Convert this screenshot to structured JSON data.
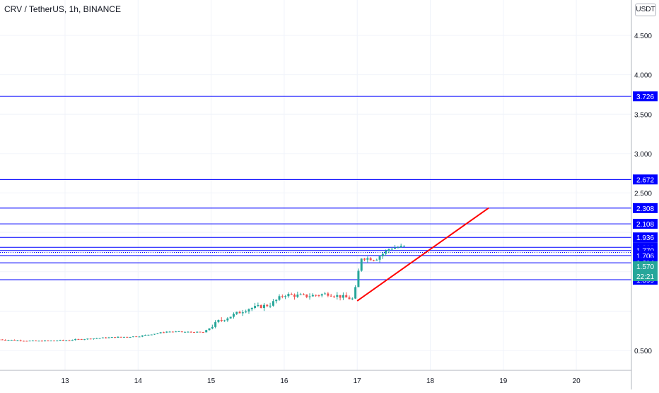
{
  "header": {
    "symbol_title": "CRV / TetherUS, 1h, BINANCE",
    "currency_button": "USDT"
  },
  "chart_data": {
    "type": "candlestick",
    "ylim": [
      0.36,
      4.92
    ],
    "y_ticks": [
      "4.500",
      "4.000",
      "3.500",
      "3.000",
      "2.500",
      "0.500"
    ],
    "x_ticks": [
      "13",
      "14",
      "15",
      "16",
      "17",
      "18",
      "19",
      "20"
    ],
    "horizontal_levels": [
      {
        "value": 3.726,
        "label": "3.726"
      },
      {
        "value": 2.672,
        "label": "2.672"
      },
      {
        "value": 2.308,
        "label": "2.308"
      },
      {
        "value": 2.108,
        "label": "2.108"
      },
      {
        "value": 1.936,
        "label": "1.936"
      },
      {
        "value": 1.81,
        "label": "1.810"
      },
      {
        "value": 1.77,
        "label": "1.770"
      },
      {
        "value": 1.706,
        "label": "1.706"
      },
      {
        "value": 1.614,
        "label": "1.614"
      },
      {
        "value": 1.399,
        "label": "1.399"
      }
    ],
    "price_line": {
      "value": 1.57,
      "label": "1.570",
      "countdown": "22:21"
    },
    "trend_line": {
      "start": {
        "x": 17.0,
        "y": 1.13
      },
      "end": {
        "x": 18.8,
        "y": 2.31
      }
    },
    "colors": {
      "up": "#26a69a",
      "down": "#ef5350",
      "level_line": "#0000ff",
      "trend_line": "#ff0000"
    },
    "close_path": [
      [
        12.1,
        0.64
      ],
      [
        12.6,
        0.62
      ],
      [
        13.0,
        0.63
      ],
      [
        13.5,
        0.66
      ],
      [
        14.0,
        0.68
      ],
      [
        14.4,
        0.74
      ],
      [
        14.9,
        0.73
      ],
      [
        15.1,
        0.87
      ],
      [
        15.5,
        1.03
      ],
      [
        15.8,
        1.08
      ],
      [
        16.0,
        1.21
      ],
      [
        16.3,
        1.19
      ],
      [
        16.6,
        1.22
      ],
      [
        16.95,
        1.15
      ],
      [
        17.05,
        1.68
      ],
      [
        17.25,
        1.66
      ],
      [
        17.45,
        1.8
      ],
      [
        17.65,
        1.82
      ]
    ]
  }
}
